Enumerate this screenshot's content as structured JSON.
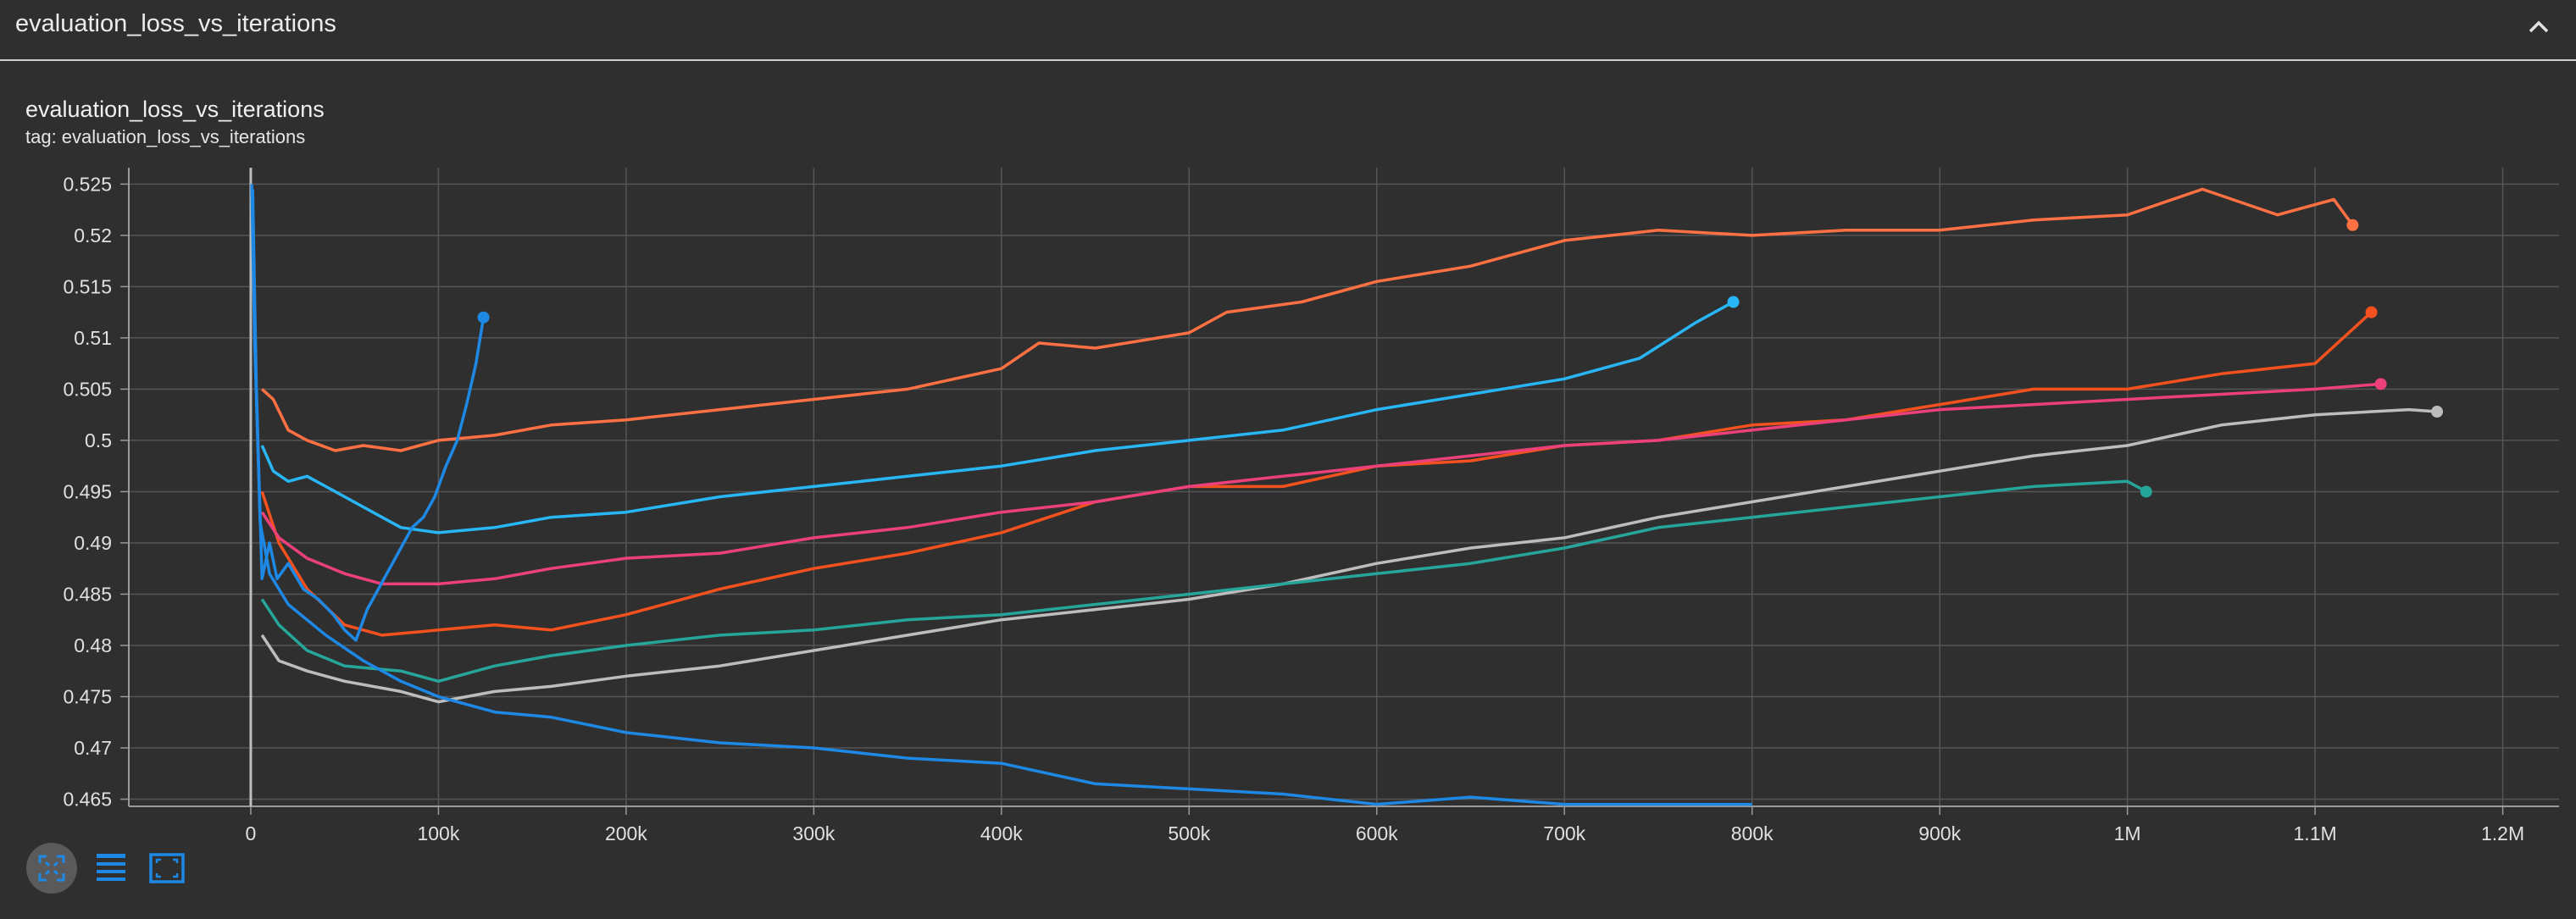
{
  "header": {
    "title": "evaluation_loss_vs_iterations"
  },
  "card": {
    "title": "evaluation_loss_vs_iterations",
    "tag": "tag: evaluation_loss_vs_iterations"
  },
  "toolbar": {
    "buttons": [
      {
        "icon": "fit-to-data-icon"
      },
      {
        "icon": "data-table-icon"
      },
      {
        "icon": "expand-chart-icon"
      }
    ]
  },
  "colors": {
    "background": "#2f2f2f",
    "grid": "#555555",
    "axis": "#9a9a9a",
    "accent": "#1e88e5"
  },
  "chart_data": {
    "type": "line",
    "title": "evaluation_loss_vs_iterations",
    "xlabel": "",
    "ylabel": "",
    "xlim": [
      -65000,
      1230000
    ],
    "ylim": [
      0.4643,
      0.5266
    ],
    "x_ticks": [
      "0",
      "100k",
      "200k",
      "300k",
      "400k",
      "500k",
      "600k",
      "700k",
      "800k",
      "900k",
      "1M",
      "1.1M",
      "1.2M"
    ],
    "y_ticks": [
      "0.465",
      "0.47",
      "0.475",
      "0.48",
      "0.485",
      "0.49",
      "0.495",
      "0.5",
      "0.505",
      "0.51",
      "0.515",
      "0.52",
      "0.525"
    ],
    "grid": true,
    "legend": "none",
    "series": [
      {
        "color": "#ff7043",
        "end_marker": true,
        "points": [
          [
            6000,
            0.505
          ],
          [
            12000,
            0.504
          ],
          [
            20000,
            0.501
          ],
          [
            30000,
            0.5
          ],
          [
            45000,
            0.499
          ],
          [
            60000,
            0.4995
          ],
          [
            80000,
            0.499
          ],
          [
            100000,
            0.5
          ],
          [
            130000,
            0.5005
          ],
          [
            160000,
            0.5015
          ],
          [
            200000,
            0.502
          ],
          [
            250000,
            0.503
          ],
          [
            300000,
            0.504
          ],
          [
            350000,
            0.505
          ],
          [
            400000,
            0.507
          ],
          [
            420000,
            0.5095
          ],
          [
            450000,
            0.509
          ],
          [
            500000,
            0.5105
          ],
          [
            520000,
            0.5125
          ],
          [
            560000,
            0.5135
          ],
          [
            600000,
            0.5155
          ],
          [
            650000,
            0.517
          ],
          [
            700000,
            0.5195
          ],
          [
            750000,
            0.5205
          ],
          [
            800000,
            0.52
          ],
          [
            850000,
            0.5205
          ],
          [
            900000,
            0.5205
          ],
          [
            950000,
            0.5215
          ],
          [
            1000000,
            0.522
          ],
          [
            1040000,
            0.5245
          ],
          [
            1080000,
            0.522
          ],
          [
            1110000,
            0.5235
          ],
          [
            1120000,
            0.521
          ]
        ]
      },
      {
        "color": "#29b6f6",
        "end_marker": true,
        "points": [
          [
            6000,
            0.4995
          ],
          [
            12000,
            0.497
          ],
          [
            20000,
            0.496
          ],
          [
            30000,
            0.4965
          ],
          [
            45000,
            0.495
          ],
          [
            60000,
            0.4935
          ],
          [
            80000,
            0.4915
          ],
          [
            100000,
            0.491
          ],
          [
            130000,
            0.4915
          ],
          [
            160000,
            0.4925
          ],
          [
            200000,
            0.493
          ],
          [
            250000,
            0.4945
          ],
          [
            300000,
            0.4955
          ],
          [
            350000,
            0.4965
          ],
          [
            400000,
            0.4975
          ],
          [
            450000,
            0.499
          ],
          [
            500000,
            0.5
          ],
          [
            550000,
            0.501
          ],
          [
            600000,
            0.503
          ],
          [
            650000,
            0.5045
          ],
          [
            700000,
            0.506
          ],
          [
            740000,
            0.508
          ],
          [
            770000,
            0.5115
          ],
          [
            790000,
            0.5135
          ]
        ]
      },
      {
        "color": "#f4511e",
        "end_marker": true,
        "points": [
          [
            6000,
            0.495
          ],
          [
            15000,
            0.49
          ],
          [
            30000,
            0.4855
          ],
          [
            50000,
            0.482
          ],
          [
            70000,
            0.481
          ],
          [
            100000,
            0.4815
          ],
          [
            130000,
            0.482
          ],
          [
            160000,
            0.4815
          ],
          [
            200000,
            0.483
          ],
          [
            250000,
            0.4855
          ],
          [
            300000,
            0.4875
          ],
          [
            350000,
            0.489
          ],
          [
            400000,
            0.491
          ],
          [
            450000,
            0.494
          ],
          [
            500000,
            0.4955
          ],
          [
            550000,
            0.4955
          ],
          [
            600000,
            0.4975
          ],
          [
            650000,
            0.498
          ],
          [
            700000,
            0.4995
          ],
          [
            750000,
            0.5
          ],
          [
            800000,
            0.5015
          ],
          [
            850000,
            0.502
          ],
          [
            900000,
            0.5035
          ],
          [
            950000,
            0.505
          ],
          [
            1000000,
            0.505
          ],
          [
            1050000,
            0.5065
          ],
          [
            1100000,
            0.5075
          ],
          [
            1130000,
            0.5125
          ]
        ]
      },
      {
        "color": "#ec407a",
        "end_marker": true,
        "points": [
          [
            6000,
            0.493
          ],
          [
            15000,
            0.4905
          ],
          [
            30000,
            0.4885
          ],
          [
            50000,
            0.487
          ],
          [
            70000,
            0.486
          ],
          [
            100000,
            0.486
          ],
          [
            130000,
            0.4865
          ],
          [
            160000,
            0.4875
          ],
          [
            200000,
            0.4885
          ],
          [
            250000,
            0.489
          ],
          [
            300000,
            0.4905
          ],
          [
            350000,
            0.4915
          ],
          [
            400000,
            0.493
          ],
          [
            450000,
            0.494
          ],
          [
            500000,
            0.4955
          ],
          [
            550000,
            0.4965
          ],
          [
            600000,
            0.4975
          ],
          [
            650000,
            0.4985
          ],
          [
            700000,
            0.4995
          ],
          [
            750000,
            0.5
          ],
          [
            800000,
            0.501
          ],
          [
            850000,
            0.502
          ],
          [
            900000,
            0.503
          ],
          [
            950000,
            0.5035
          ],
          [
            1000000,
            0.504
          ],
          [
            1050000,
            0.5045
          ],
          [
            1100000,
            0.505
          ],
          [
            1135000,
            0.5055
          ]
        ]
      },
      {
        "color": "#bdbdbd",
        "end_marker": true,
        "points": [
          [
            6000,
            0.481
          ],
          [
            15000,
            0.4785
          ],
          [
            30000,
            0.4775
          ],
          [
            50000,
            0.4765
          ],
          [
            80000,
            0.4755
          ],
          [
            100000,
            0.4745
          ],
          [
            130000,
            0.4755
          ],
          [
            160000,
            0.476
          ],
          [
            200000,
            0.477
          ],
          [
            250000,
            0.478
          ],
          [
            300000,
            0.4795
          ],
          [
            350000,
            0.481
          ],
          [
            400000,
            0.4825
          ],
          [
            450000,
            0.4835
          ],
          [
            500000,
            0.4845
          ],
          [
            550000,
            0.486
          ],
          [
            600000,
            0.488
          ],
          [
            650000,
            0.4895
          ],
          [
            700000,
            0.4905
          ],
          [
            750000,
            0.4925
          ],
          [
            800000,
            0.494
          ],
          [
            850000,
            0.4955
          ],
          [
            900000,
            0.497
          ],
          [
            950000,
            0.4985
          ],
          [
            1000000,
            0.4995
          ],
          [
            1050000,
            0.5015
          ],
          [
            1100000,
            0.5025
          ],
          [
            1150000,
            0.503
          ],
          [
            1165000,
            0.5028
          ]
        ]
      },
      {
        "color": "#26a69a",
        "end_marker": true,
        "points": [
          [
            6000,
            0.4845
          ],
          [
            15000,
            0.482
          ],
          [
            30000,
            0.4795
          ],
          [
            50000,
            0.478
          ],
          [
            80000,
            0.4775
          ],
          [
            100000,
            0.4765
          ],
          [
            130000,
            0.478
          ],
          [
            160000,
            0.479
          ],
          [
            200000,
            0.48
          ],
          [
            250000,
            0.481
          ],
          [
            300000,
            0.4815
          ],
          [
            350000,
            0.4825
          ],
          [
            400000,
            0.483
          ],
          [
            450000,
            0.484
          ],
          [
            500000,
            0.485
          ],
          [
            550000,
            0.486
          ],
          [
            600000,
            0.487
          ],
          [
            650000,
            0.488
          ],
          [
            700000,
            0.4895
          ],
          [
            750000,
            0.4915
          ],
          [
            800000,
            0.4925
          ],
          [
            850000,
            0.4935
          ],
          [
            900000,
            0.4945
          ],
          [
            950000,
            0.4955
          ],
          [
            1000000,
            0.496
          ],
          [
            1010000,
            0.495
          ]
        ]
      },
      {
        "color": "#1e88e5",
        "end_marker": false,
        "points": [
          [
            500,
            0.525
          ],
          [
            2000,
            0.51
          ],
          [
            5000,
            0.492
          ],
          [
            10000,
            0.487
          ],
          [
            20000,
            0.484
          ],
          [
            40000,
            0.481
          ],
          [
            60000,
            0.4785
          ],
          [
            80000,
            0.4765
          ],
          [
            100000,
            0.475
          ],
          [
            130000,
            0.4735
          ],
          [
            160000,
            0.473
          ],
          [
            200000,
            0.4715
          ],
          [
            250000,
            0.4705
          ],
          [
            300000,
            0.47
          ],
          [
            350000,
            0.469
          ],
          [
            400000,
            0.4685
          ],
          [
            450000,
            0.4665
          ],
          [
            500000,
            0.466
          ],
          [
            550000,
            0.4655
          ],
          [
            600000,
            0.4645
          ],
          [
            650000,
            0.4652
          ],
          [
            700000,
            0.4645
          ],
          [
            750000,
            0.4645
          ],
          [
            800000,
            0.4645
          ]
        ]
      },
      {
        "color": "#1e88e5",
        "end_marker": true,
        "points": [
          [
            1000,
            0.5245
          ],
          [
            3000,
            0.505
          ],
          [
            6000,
            0.4865
          ],
          [
            10000,
            0.49
          ],
          [
            14000,
            0.4865
          ],
          [
            20000,
            0.488
          ],
          [
            28000,
            0.4855
          ],
          [
            36000,
            0.4845
          ],
          [
            44000,
            0.483
          ],
          [
            50000,
            0.4815
          ],
          [
            56000,
            0.4805
          ],
          [
            62000,
            0.4835
          ],
          [
            68000,
            0.4855
          ],
          [
            74000,
            0.4875
          ],
          [
            80000,
            0.4895
          ],
          [
            86000,
            0.4915
          ],
          [
            92000,
            0.4925
          ],
          [
            98000,
            0.4945
          ],
          [
            104000,
            0.4975
          ],
          [
            110000,
            0.5
          ],
          [
            115000,
            0.5035
          ],
          [
            120000,
            0.5075
          ],
          [
            124000,
            0.512
          ]
        ]
      }
    ]
  }
}
